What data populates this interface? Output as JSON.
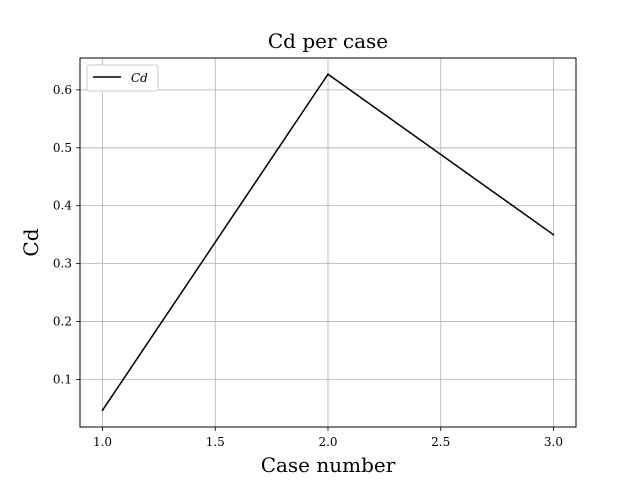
{
  "chart_data": {
    "type": "line",
    "title": "Cd per case",
    "xlabel": "Case number",
    "ylabel": "Cd",
    "xlim": [
      0.9,
      3.1
    ],
    "ylim": [
      0.018,
      0.655
    ],
    "xticks": [
      1.0,
      1.5,
      2.0,
      2.5,
      3.0
    ],
    "xtick_labels": [
      "1.0",
      "1.5",
      "2.0",
      "2.5",
      "3.0"
    ],
    "yticks": [
      0.1,
      0.2,
      0.3,
      0.4,
      0.5,
      0.6
    ],
    "ytick_labels": [
      "0.1",
      "0.2",
      "0.3",
      "0.4",
      "0.5",
      "0.6"
    ],
    "grid": true,
    "legend_position": "upper-left",
    "series": [
      {
        "name": "Cd",
        "color": "#000000",
        "x": [
          1.0,
          2.0,
          3.0
        ],
        "y": [
          0.047,
          0.627,
          0.35
        ]
      }
    ]
  }
}
